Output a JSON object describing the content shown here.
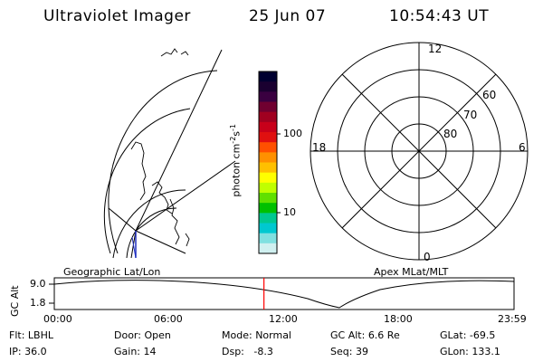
{
  "header": {
    "instrument": "Ultraviolet Imager",
    "date": "25 Jun 07",
    "time": "10:54:43 UT"
  },
  "colorbar": {
    "unit": "photon cm-2s-1",
    "ticks": [
      "100",
      "10"
    ],
    "colors": [
      "#000030",
      "#1a0030",
      "#3a0040",
      "#700030",
      "#a00020",
      "#c8001a",
      "#e01010",
      "#ff5000",
      "#ff9000",
      "#ffc000",
      "#ffff00",
      "#c0ff00",
      "#60e000",
      "#00c000",
      "#00c890",
      "#00c8d0",
      "#80e0e0",
      "#d0f0f0"
    ]
  },
  "geo_panel": {
    "label": "Geographic Lat/Lon"
  },
  "polar_panel": {
    "label": "Apex MLat/MLT",
    "mlt_labels": {
      "top": "12",
      "left": "18",
      "right": "6",
      "bottom": "0"
    },
    "lat_labels": [
      "60",
      "70",
      "80"
    ]
  },
  "altitude_plot": {
    "ylabel": "GC Alt",
    "yticks": [
      "9.0",
      "1.8"
    ],
    "xticks": [
      "00:00",
      "06:00",
      "12:00",
      "18:00",
      "23:59"
    ],
    "current_time_fraction": 0.456,
    "marker_color": "#ff0000"
  },
  "status": {
    "row1": [
      {
        "label": "Flt:",
        "value": "LBHL"
      },
      {
        "label": "Door:",
        "value": "Open"
      },
      {
        "label": "Mode:",
        "value": "Normal"
      },
      {
        "label": "GC Alt:",
        "value": "6.6 Re"
      },
      {
        "label": "GLat:",
        "value": "-69.5"
      }
    ],
    "row2": [
      {
        "label": "IP:",
        "value": "36.0"
      },
      {
        "label": "Gain:",
        "value": "14"
      },
      {
        "label": "Dsp:",
        "value": "-8.3"
      },
      {
        "label": "Seq:",
        "value": "39"
      },
      {
        "label": "GLon:",
        "value": "133.1"
      }
    ]
  }
}
